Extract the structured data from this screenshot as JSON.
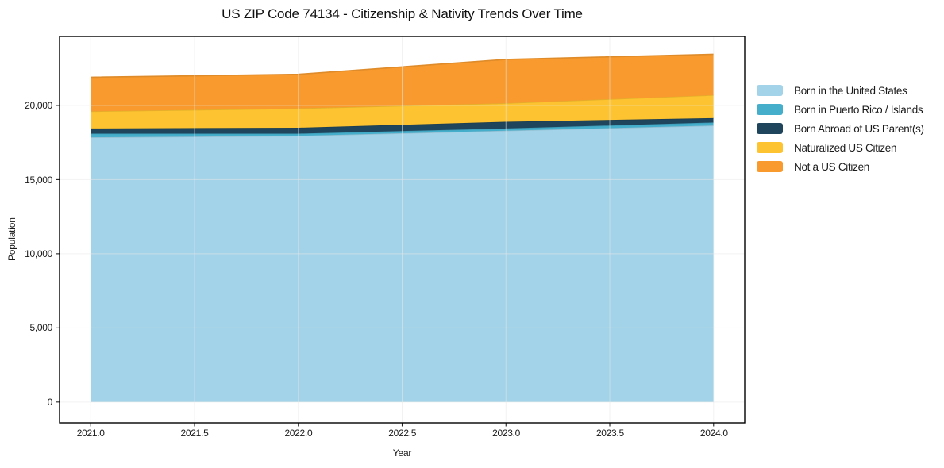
{
  "chart_data": {
    "type": "area",
    "stacked": true,
    "title": "US ZIP Code 74134 - Citizenship & Nativity Trends Over Time",
    "xlabel": "Year",
    "ylabel": "Population",
    "x": [
      2021,
      2022,
      2023,
      2024
    ],
    "series": [
      {
        "name": "Born in the United States",
        "color": "#a3d3e8",
        "values": [
          17850,
          17950,
          18300,
          18650
        ]
      },
      {
        "name": "Born in Puerto Rico / Islands",
        "color": "#45aecb",
        "values": [
          250,
          150,
          150,
          200
        ]
      },
      {
        "name": "Born Abroad of US Parent(s)",
        "color": "#1f455c",
        "values": [
          350,
          400,
          450,
          300
        ]
      },
      {
        "name": "Naturalized US Citizen",
        "color": "#fdc330",
        "values": [
          1150,
          1300,
          1250,
          1550
        ]
      },
      {
        "name": "Not a US Citizen",
        "color": "#f89a2d",
        "values": [
          2300,
          2300,
          2950,
          2750
        ]
      }
    ],
    "totals": [
      21900,
      22100,
      23100,
      23450
    ],
    "xlim": [
      2020.85,
      2024.15
    ],
    "ylim": [
      -1400,
      24650
    ],
    "xticks": [
      2021.0,
      2021.5,
      2022.0,
      2022.5,
      2023.0,
      2023.5,
      2024.0
    ],
    "xtick_labels": [
      "2021.0",
      "2021.5",
      "2022.0",
      "2022.5",
      "2023.0",
      "2023.5",
      "2024.0"
    ],
    "yticks": [
      0,
      5000,
      10000,
      15000,
      20000
    ],
    "ytick_labels": [
      "0",
      "5,000",
      "10,000",
      "15,000",
      "20,000"
    ],
    "grid": true,
    "grid_color": "#e7e7e7",
    "spine_color": "#000000",
    "background_color": "#ffffff",
    "legend_position": "right-outside"
  }
}
